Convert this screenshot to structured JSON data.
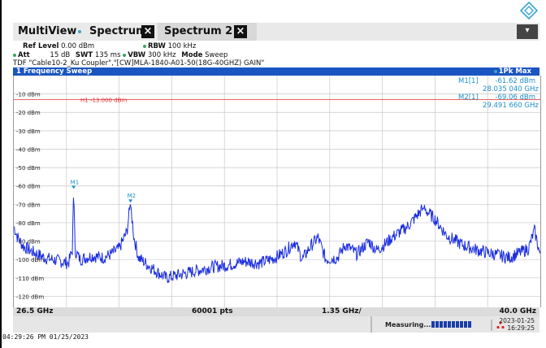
{
  "tabs": [
    {
      "label": "MultiView"
    },
    {
      "label": "Spectrum"
    },
    {
      "label": "Spectrum 2"
    }
  ],
  "settings": {
    "ref_level_label": "Ref Level",
    "ref_level_value": "0.00 dBm",
    "att_label": "Att",
    "att_value": "15 dB",
    "swt_label": "SWT",
    "swt_value": "135 ms",
    "rbw_label": "RBW",
    "rbw_value": "100 kHz",
    "vbw_label": "VBW",
    "vbw_value": "300 kHz",
    "mode_label": "Mode",
    "mode_value": "Sweep",
    "tdf": "TDF \"Cable10-2_Ku Coupler\",\"[CW]MLA-1840-A01-50(18G-40GHZ) GAIN\""
  },
  "pane": {
    "title": "1 Frequency Sweep",
    "trace_label": "1Pk Max"
  },
  "markers": [
    {
      "label": "M1[1]",
      "level": "-61.62 dBm",
      "freq": "28.035 040 GHz",
      "tag": "M1"
    },
    {
      "label": "M2[1]",
      "level": "-69.06 dBm",
      "freq": "29.491 660 GHz",
      "tag": "M2"
    }
  ],
  "limit_line": {
    "label": "H1 -13.000 dBm",
    "value": -13
  },
  "colors": {
    "trace": "#1a2de0",
    "limit": "#e03030",
    "marker": "#1d8fc9",
    "header": "#1b55c2"
  },
  "chart_data": {
    "type": "line",
    "y_tick_labels": [
      "-10 dBm",
      "-20 dBm",
      "-30 dBm",
      "-40 dBm",
      "-50 dBm",
      "-60 dBm",
      "-70 dBm",
      "-80 dBm",
      "-90 dBm",
      "-100 dBm",
      "-110 dBm",
      "-120 dBm"
    ],
    "y_ticks": [
      -10,
      -20,
      -30,
      -40,
      -50,
      -60,
      -70,
      -80,
      -90,
      -100,
      -110,
      -120
    ],
    "ylim": [
      -126,
      0
    ],
    "xlim": [
      26.5,
      40.0
    ],
    "x_axis": {
      "start": "26.5 GHz",
      "points": "60001 pts",
      "span_div": "1.35 GHz/",
      "stop": "40.0 GHz"
    },
    "grid": true,
    "series": [
      {
        "x": [
          26.5,
          26.6,
          26.75,
          27.0,
          27.3,
          27.5,
          27.7,
          27.9,
          28.0,
          28.035,
          28.07,
          28.2,
          28.5,
          28.8,
          29.0,
          29.2,
          29.4,
          29.49,
          29.58,
          29.7,
          30.0,
          30.4,
          30.8,
          31.2,
          31.6,
          32.0,
          32.4,
          32.8,
          33.2,
          33.5,
          33.7,
          33.9,
          34.1,
          34.3,
          34.5,
          34.8,
          35.0,
          35.3,
          35.6,
          35.8,
          36.0,
          36.2,
          36.4,
          36.6,
          36.8,
          37.0,
          37.3,
          37.6,
          38.0,
          38.4,
          38.8,
          39.2,
          39.5,
          39.7,
          39.85,
          40.0
        ],
        "y": [
          -82,
          -88,
          -93,
          -96,
          -99,
          -100,
          -101,
          -102,
          -95,
          -61.6,
          -95,
          -100,
          -98,
          -99,
          -97,
          -94,
          -85,
          -69.1,
          -88,
          -99,
          -104,
          -110,
          -108,
          -106,
          -104,
          -103,
          -101,
          -102,
          -99,
          -95,
          -90,
          -100,
          -93,
          -88,
          -100,
          -99,
          -92,
          -97,
          -90,
          -95,
          -92,
          -88,
          -85,
          -82,
          -77,
          -72,
          -78,
          -87,
          -92,
          -95,
          -97,
          -99,
          -96,
          -94,
          -84,
          -98
        ]
      }
    ]
  },
  "status": {
    "text": "Measuring...",
    "date": "2023-01-25",
    "time": "16:29:25"
  },
  "footer": "04:29:26 PM  01/25/2023"
}
